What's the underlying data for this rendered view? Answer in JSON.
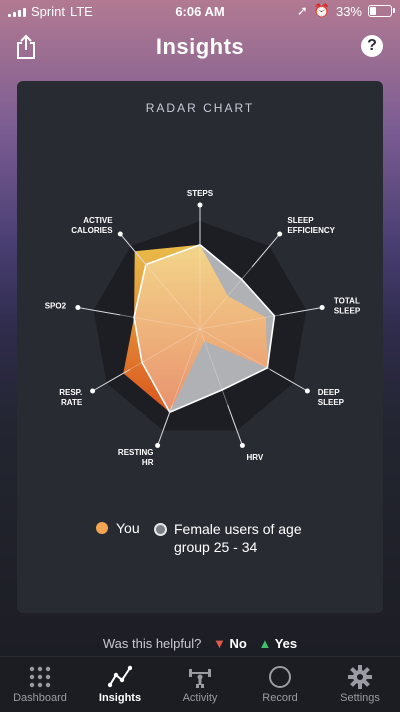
{
  "status_bar": {
    "carrier": "Sprint",
    "network": "LTE",
    "time": "6:06 AM",
    "battery": "33%"
  },
  "header": {
    "title": "Insights",
    "share_icon": "share-icon",
    "help_label": "?"
  },
  "card": {
    "title": "RADAR CHART"
  },
  "chart_data": {
    "type": "radar",
    "title": "RADAR CHART",
    "axes": [
      [
        "STEPS"
      ],
      [
        "SLEEP",
        "EFFICIENCY"
      ],
      [
        "TOTAL",
        "SLEEP"
      ],
      [
        "DEEP",
        "SLEEP"
      ],
      [
        "HRV"
      ],
      [
        "RESTING",
        "HR"
      ],
      [
        "RESP.",
        "RATE"
      ],
      [
        "SPO2"
      ],
      [
        "ACTIVE",
        "CALORIES"
      ]
    ],
    "series": [
      {
        "name": "You",
        "values": [
          0.78,
          0.4,
          0.62,
          0.72,
          0.12,
          0.82,
          0.82,
          0.62,
          0.94
        ],
        "color": "#f3a552"
      },
      {
        "name": "Female users of age group 25 - 34",
        "values": [
          0.78,
          0.6,
          0.7,
          0.72,
          0.6,
          0.82,
          0.62,
          0.62,
          0.78
        ],
        "color": "#8b8d93"
      }
    ],
    "legend": "bottom"
  },
  "legend": {
    "you": "You",
    "female_line1": "Female users of age",
    "female_line2": "group 25 - 34"
  },
  "feedback": {
    "question": "Was this helpful?",
    "no": "No",
    "yes": "Yes"
  },
  "tabs": [
    {
      "label": "Dashboard",
      "icon": "dashboard-icon"
    },
    {
      "label": "Insights",
      "icon": "insights-icon",
      "active": true
    },
    {
      "label": "Activity",
      "icon": "activity-icon"
    },
    {
      "label": "Record",
      "icon": "record-icon"
    },
    {
      "label": "Settings",
      "icon": "settings-icon"
    }
  ]
}
